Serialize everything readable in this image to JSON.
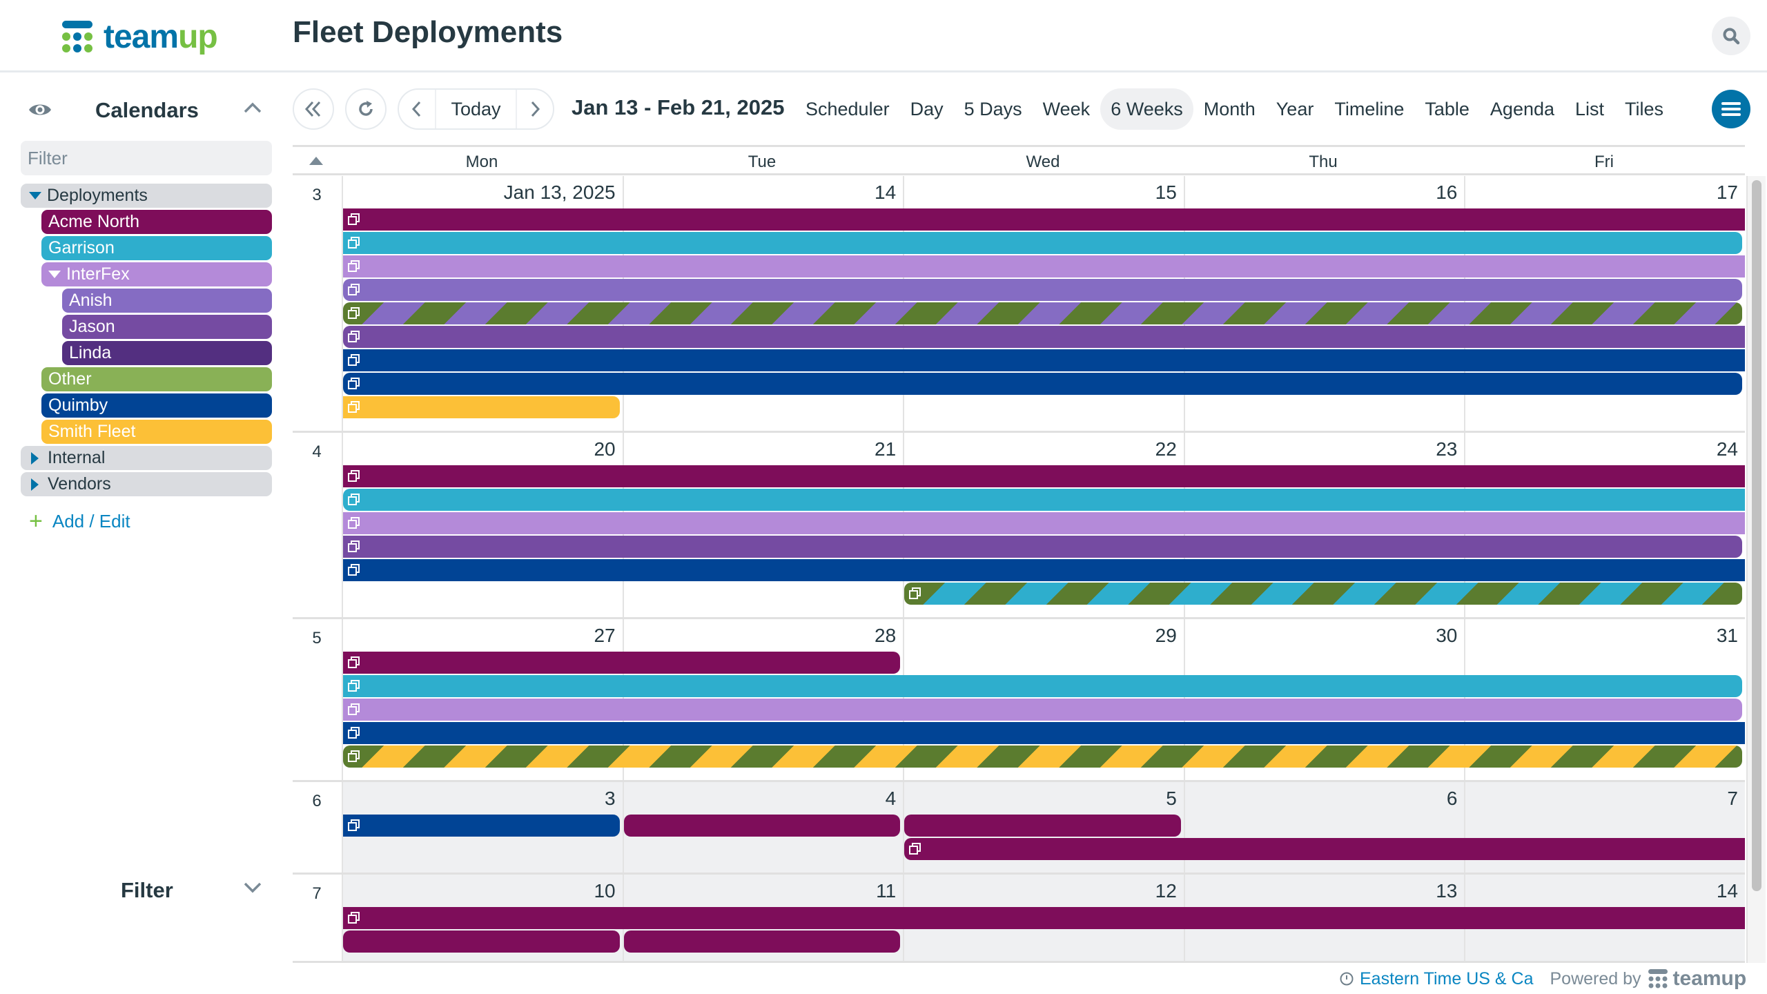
{
  "header": {
    "logo_part1": "team",
    "logo_part2": "up",
    "title": "Fleet Deployments",
    "search_icon": "search-icon"
  },
  "colors": {
    "brand_blue": "#0273a8",
    "brand_green": "#76c043",
    "acme_north": "#7e0d5a",
    "garrison": "#2eaecd",
    "interfex": "#b48ad9",
    "anish": "#856cc3",
    "jason": "#754ba2",
    "linda": "#532f80",
    "other": "#89b156",
    "other_dark": "#5b7c2f",
    "quimby": "#014495",
    "smith_fleet": "#fcc037",
    "group_bg": "#dadce0"
  },
  "sidebar": {
    "calendars_title": "Calendars",
    "filter_placeholder": "Filter",
    "tree": [
      {
        "label": "Deployments",
        "type": "group",
        "expanded": true,
        "level": 0
      },
      {
        "label": "Acme North",
        "type": "calendar",
        "color": "#7e0d5a",
        "level": 1
      },
      {
        "label": "Garrison",
        "type": "calendar",
        "color": "#2eaecd",
        "level": 1
      },
      {
        "label": "InterFex",
        "type": "subgroup",
        "color": "#b48ad9",
        "expanded": true,
        "level": 1
      },
      {
        "label": "Anish",
        "type": "calendar",
        "color": "#856cc3",
        "level": 2
      },
      {
        "label": "Jason",
        "type": "calendar",
        "color": "#754ba2",
        "level": 2
      },
      {
        "label": "Linda",
        "type": "calendar",
        "color": "#532f80",
        "level": 2
      },
      {
        "label": "Other",
        "type": "calendar",
        "color": "#89b156",
        "level": 1
      },
      {
        "label": "Quimby",
        "type": "calendar",
        "color": "#014495",
        "level": 1
      },
      {
        "label": "Smith Fleet",
        "type": "calendar",
        "color": "#fcc037",
        "level": 1
      },
      {
        "label": "Internal",
        "type": "group",
        "expanded": false,
        "level": 0
      },
      {
        "label": "Vendors",
        "type": "group",
        "expanded": false,
        "level": 0
      }
    ],
    "add_edit": "Add / Edit",
    "filter_title": "Filter"
  },
  "toolbar": {
    "today": "Today",
    "date_range": "Jan 13 - Feb 21, 2025",
    "views": [
      "Scheduler",
      "Day",
      "5 Days",
      "Week",
      "6 Weeks",
      "Month",
      "Year",
      "Timeline",
      "Table",
      "Agenda",
      "List",
      "Tiles"
    ],
    "active_view": "6 Weeks"
  },
  "calendar": {
    "day_names": [
      "Mon",
      "Tue",
      "Wed",
      "Thu",
      "Fri"
    ],
    "weeks": [
      {
        "num": "3",
        "days": [
          "Jan 13, 2025",
          "14",
          "15",
          "16",
          "17"
        ],
        "other_month": [
          false,
          false,
          false,
          false,
          false
        ]
      },
      {
        "num": "4",
        "days": [
          "20",
          "21",
          "22",
          "23",
          "24"
        ],
        "other_month": [
          false,
          false,
          false,
          false,
          false
        ]
      },
      {
        "num": "5",
        "days": [
          "27",
          "28",
          "29",
          "30",
          "31"
        ],
        "other_month": [
          false,
          false,
          false,
          false,
          false
        ]
      },
      {
        "num": "6",
        "days": [
          "3",
          "4",
          "5",
          "6",
          "7"
        ],
        "other_month": [
          true,
          true,
          true,
          true,
          true
        ]
      },
      {
        "num": "7",
        "days": [
          "10",
          "11",
          "12",
          "13",
          "14"
        ],
        "other_month": [
          true,
          true,
          true,
          true,
          true
        ]
      }
    ],
    "events": [
      {
        "week": 0,
        "row": 0,
        "start": 0,
        "end": 4,
        "color": "#7e0d5a",
        "round_left": false,
        "round_right": false,
        "recurring": true
      },
      {
        "week": 0,
        "row": 1,
        "start": 0,
        "end": 4,
        "color": "#2eaecd",
        "round_left": false,
        "round_right": true,
        "recurring": true
      },
      {
        "week": 0,
        "row": 2,
        "start": 0,
        "end": 4,
        "color": "#b48ad9",
        "round_left": false,
        "round_right": false,
        "recurring": true
      },
      {
        "week": 0,
        "row": 3,
        "start": 0,
        "end": 4,
        "color": "#856cc3",
        "round_left": true,
        "round_right": true,
        "recurring": true
      },
      {
        "week": 0,
        "row": 4,
        "start": 0,
        "end": 4,
        "color": "#856cc3",
        "stripe": "#5b7c2f",
        "round_left": true,
        "round_right": true,
        "recurring": true
      },
      {
        "week": 0,
        "row": 5,
        "start": 0,
        "end": 4,
        "color": "#754ba2",
        "round_left": true,
        "round_right": false,
        "recurring": true
      },
      {
        "week": 0,
        "row": 6,
        "start": 0,
        "end": 4,
        "color": "#014495",
        "round_left": false,
        "round_right": false,
        "recurring": true
      },
      {
        "week": 0,
        "row": 7,
        "start": 0,
        "end": 4,
        "color": "#014495",
        "round_left": true,
        "round_right": true,
        "recurring": true
      },
      {
        "week": 0,
        "row": 8,
        "start": 0,
        "end": 0,
        "color": "#fcc037",
        "round_left": false,
        "round_right": true,
        "recurring": true
      },
      {
        "week": 1,
        "row": 0,
        "start": 0,
        "end": 4,
        "color": "#7e0d5a",
        "round_left": false,
        "round_right": false,
        "recurring": true
      },
      {
        "week": 1,
        "row": 1,
        "start": 0,
        "end": 4,
        "color": "#2eaecd",
        "round_left": true,
        "round_right": false,
        "recurring": true
      },
      {
        "week": 1,
        "row": 2,
        "start": 0,
        "end": 4,
        "color": "#b48ad9",
        "round_left": false,
        "round_right": false,
        "recurring": true
      },
      {
        "week": 1,
        "row": 3,
        "start": 0,
        "end": 4,
        "color": "#754ba2",
        "round_left": false,
        "round_right": true,
        "recurring": true
      },
      {
        "week": 1,
        "row": 4,
        "start": 0,
        "end": 4,
        "color": "#014495",
        "round_left": false,
        "round_right": false,
        "recurring": true
      },
      {
        "week": 1,
        "row": 5,
        "start": 2,
        "end": 4,
        "color": "#2eaecd",
        "stripe": "#5b7c2f",
        "round_left": true,
        "round_right": true,
        "recurring": true
      },
      {
        "week": 2,
        "row": 0,
        "start": 0,
        "end": 1,
        "color": "#7e0d5a",
        "round_left": false,
        "round_right": true,
        "recurring": true
      },
      {
        "week": 2,
        "row": 1,
        "start": 0,
        "end": 4,
        "color": "#2eaecd",
        "round_left": false,
        "round_right": true,
        "recurring": true
      },
      {
        "week": 2,
        "row": 2,
        "start": 0,
        "end": 4,
        "color": "#b48ad9",
        "round_left": false,
        "round_right": true,
        "recurring": true
      },
      {
        "week": 2,
        "row": 3,
        "start": 0,
        "end": 4,
        "color": "#014495",
        "round_left": false,
        "round_right": false,
        "recurring": true
      },
      {
        "week": 2,
        "row": 4,
        "start": 0,
        "end": 4,
        "color": "#fcc037",
        "stripe": "#5b7c2f",
        "round_left": true,
        "round_right": true,
        "recurring": true
      },
      {
        "week": 3,
        "row": 0,
        "start": 0,
        "end": 0,
        "color": "#014495",
        "round_left": false,
        "round_right": true,
        "recurring": true
      },
      {
        "week": 3,
        "row": 0,
        "start": 1,
        "end": 1,
        "color": "#7e0d5a",
        "round_left": true,
        "round_right": true,
        "recurring": false
      },
      {
        "week": 3,
        "row": 0,
        "start": 2,
        "end": 2,
        "color": "#7e0d5a",
        "round_left": true,
        "round_right": true,
        "recurring": false
      },
      {
        "week": 3,
        "row": 1,
        "start": 2,
        "end": 4,
        "color": "#7e0d5a",
        "round_left": true,
        "round_right": false,
        "recurring": true
      },
      {
        "week": 4,
        "row": 0,
        "start": 0,
        "end": 4,
        "color": "#7e0d5a",
        "round_left": false,
        "round_right": false,
        "recurring": true
      },
      {
        "week": 4,
        "row": 1,
        "start": 0,
        "end": 0,
        "color": "#7e0d5a",
        "round_left": true,
        "round_right": true,
        "recurring": false
      },
      {
        "week": 4,
        "row": 1,
        "start": 1,
        "end": 1,
        "color": "#7e0d5a",
        "round_left": true,
        "round_right": true,
        "recurring": false
      }
    ]
  },
  "footer": {
    "timezone": "Eastern Time US & Ca",
    "powered_by": "Powered by",
    "brand": "teamup"
  }
}
